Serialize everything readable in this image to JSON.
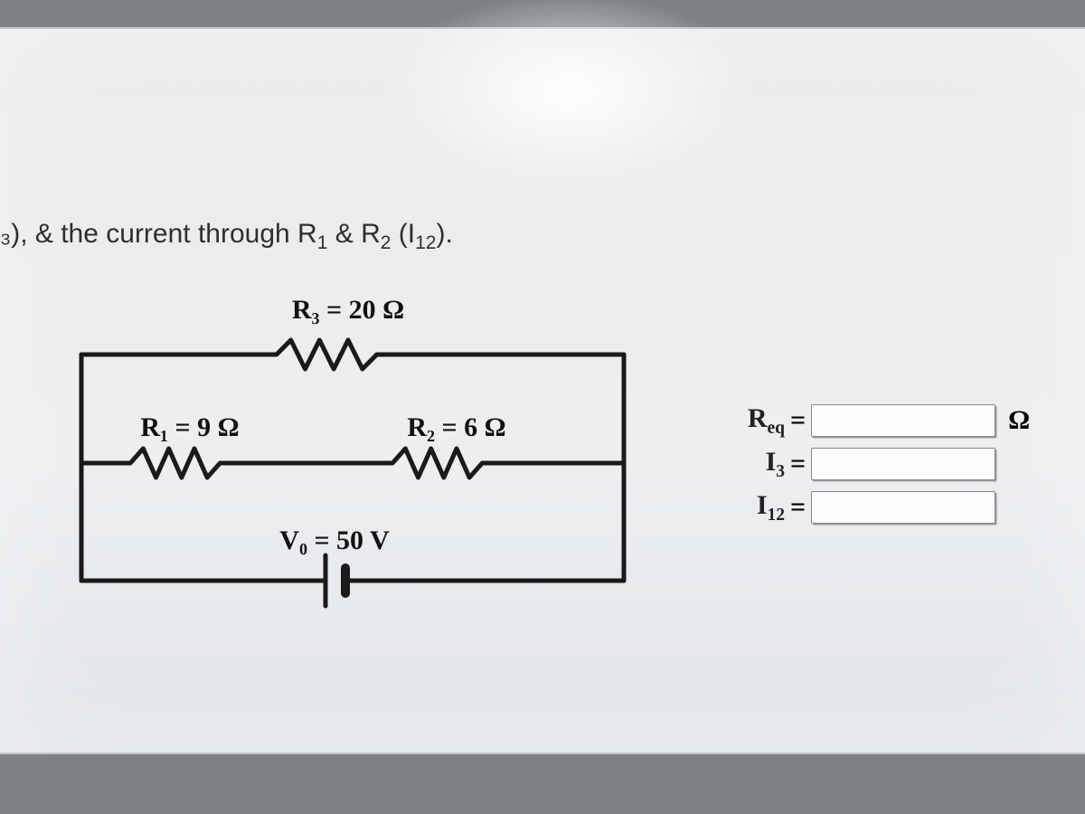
{
  "prompt_html": "₃), & the current through R<sub>1</sub> & R<sub>2</sub> (I<sub>12</sub>).",
  "circuit": {
    "stroke": "#1a1a1a",
    "stroke_width": 5,
    "text_color": "#111111",
    "label_fontsize": 30,
    "components": {
      "R3": {
        "label": "R₃ = 20 Ω"
      },
      "R1": {
        "label": "R₁ = 9 Ω"
      },
      "R2": {
        "label": "R₂ = 6 Ω"
      },
      "V0": {
        "label": "V₀ = 50 V"
      }
    }
  },
  "answers": {
    "rows": [
      {
        "symbol": "R<sub>eq</sub>",
        "value": "",
        "unit": "Ω"
      },
      {
        "symbol": "I<sub>3</sub>",
        "value": "",
        "unit": ""
      },
      {
        "symbol": "I<sub>12</sub>",
        "value": "",
        "unit": ""
      }
    ],
    "input_bg": "#fcfcfc",
    "input_border": "#888888"
  }
}
